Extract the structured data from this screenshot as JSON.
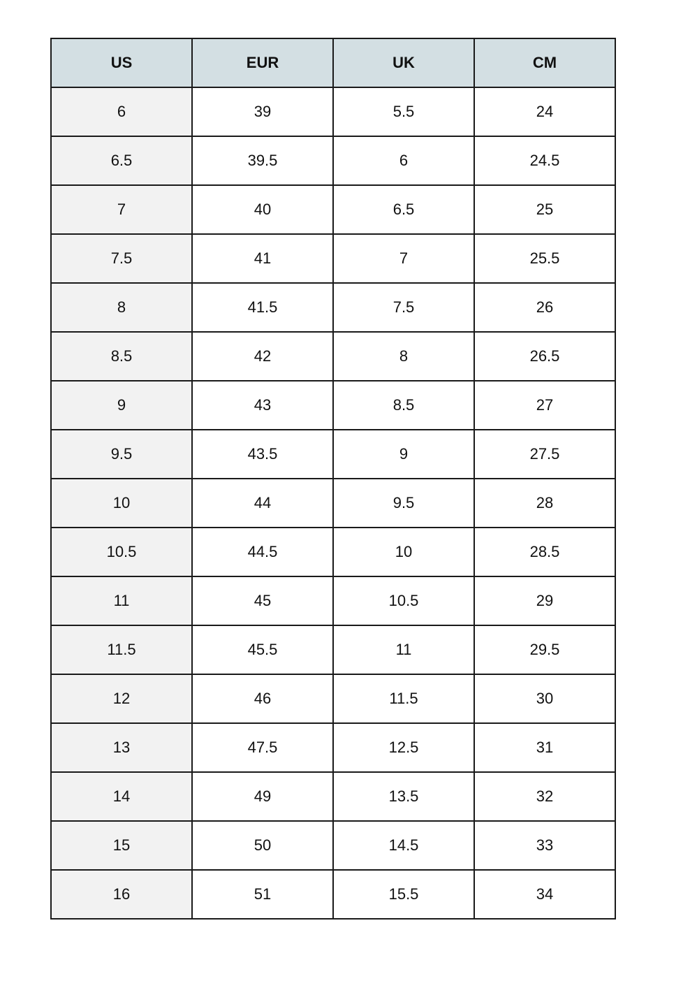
{
  "colors": {
    "header_bg": "#d3dfe3",
    "first_column_bg": "#f2f2f2",
    "border": "#1a1a1a"
  },
  "table": {
    "headers": [
      "US",
      "EUR",
      "UK",
      "CM"
    ],
    "rows": [
      [
        "6",
        "39",
        "5.5",
        "24"
      ],
      [
        "6.5",
        "39.5",
        "6",
        "24.5"
      ],
      [
        "7",
        "40",
        "6.5",
        "25"
      ],
      [
        "7.5",
        "41",
        "7",
        "25.5"
      ],
      [
        "8",
        "41.5",
        "7.5",
        "26"
      ],
      [
        "8.5",
        "42",
        "8",
        "26.5"
      ],
      [
        "9",
        "43",
        "8.5",
        "27"
      ],
      [
        "9.5",
        "43.5",
        "9",
        "27.5"
      ],
      [
        "10",
        "44",
        "9.5",
        "28"
      ],
      [
        "10.5",
        "44.5",
        "10",
        "28.5"
      ],
      [
        "11",
        "45",
        "10.5",
        "29"
      ],
      [
        "11.5",
        "45.5",
        "11",
        "29.5"
      ],
      [
        "12",
        "46",
        "11.5",
        "30"
      ],
      [
        "13",
        "47.5",
        "12.5",
        "31"
      ],
      [
        "14",
        "49",
        "13.5",
        "32"
      ],
      [
        "15",
        "50",
        "14.5",
        "33"
      ],
      [
        "16",
        "51",
        "15.5",
        "34"
      ]
    ]
  }
}
